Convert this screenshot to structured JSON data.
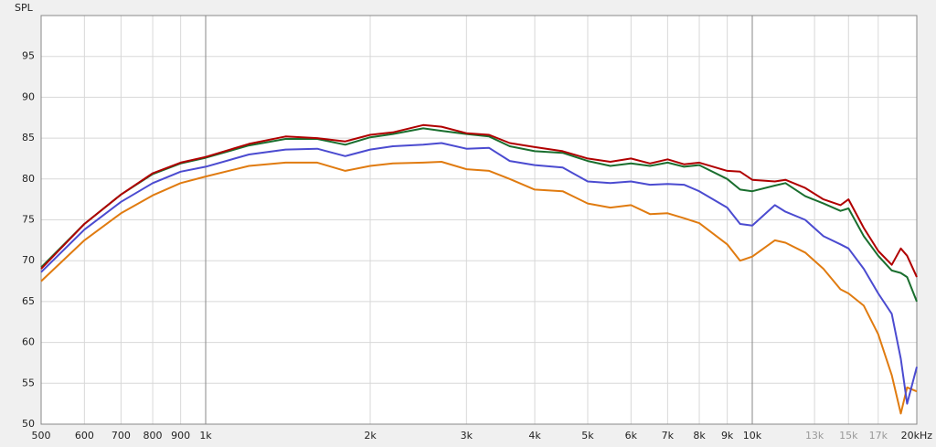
{
  "chart_data": {
    "type": "line",
    "y_label": "SPL",
    "xscale": "log",
    "grid": true,
    "x": [
      500,
      600,
      700,
      800,
      900,
      1000,
      1200,
      1400,
      1600,
      1800,
      2000,
      2200,
      2500,
      2700,
      3000,
      3300,
      3600,
      4000,
      4500,
      5000,
      5500,
      6000,
      6500,
      7000,
      7500,
      8000,
      9000,
      9500,
      10000,
      11000,
      11500,
      12500,
      13500,
      14500,
      15000,
      16000,
      17000,
      18000,
      18700,
      19200,
      20000
    ],
    "series": [
      {
        "color": "#b00000",
        "values": [
          69,
          74.5,
          78.1,
          80.7,
          82,
          82.7,
          84.3,
          85.2,
          85,
          84.6,
          85.4,
          85.7,
          86.6,
          86.4,
          85.6,
          85.4,
          84.4,
          83.9,
          83.4,
          82.5,
          82.1,
          82.5,
          81.9,
          82.4,
          81.8,
          82,
          81,
          80.9,
          79.9,
          79.7,
          79.9,
          78.9,
          77.5,
          76.8,
          77.5,
          74,
          71.2,
          69.5,
          71.5,
          70.6,
          68
        ]
      },
      {
        "color": "#1a6e2e",
        "values": [
          69.2,
          74.5,
          78.1,
          80.6,
          81.9,
          82.6,
          84.1,
          84.9,
          84.9,
          84.2,
          85.1,
          85.5,
          86.2,
          85.9,
          85.5,
          85.2,
          84,
          83.4,
          83.2,
          82.2,
          81.6,
          81.9,
          81.6,
          82,
          81.5,
          81.7,
          80,
          78.7,
          78.5,
          79.2,
          79.5,
          77.9,
          77,
          76.1,
          76.4,
          73,
          70.6,
          68.8,
          68.5,
          68,
          65
        ]
      },
      {
        "color": "#4b4bd0",
        "values": [
          68.6,
          73.8,
          77.2,
          79.5,
          80.9,
          81.5,
          83,
          83.6,
          83.7,
          82.8,
          83.6,
          84,
          84.2,
          84.4,
          83.7,
          83.8,
          82.2,
          81.7,
          81.4,
          79.7,
          79.5,
          79.7,
          79.3,
          79.4,
          79.3,
          78.5,
          76.5,
          74.5,
          74.3,
          76.8,
          76,
          75,
          73,
          72,
          71.5,
          69,
          66,
          63.5,
          58,
          52.5,
          57
        ]
      },
      {
        "color": "#e07b10",
        "values": [
          67.5,
          72.5,
          75.8,
          78,
          79.5,
          80.3,
          81.6,
          82,
          82,
          81,
          81.6,
          81.9,
          82,
          82.1,
          81.2,
          81,
          80,
          78.7,
          78.5,
          77,
          76.5,
          76.8,
          75.7,
          75.8,
          75.2,
          74.6,
          72,
          70,
          70.5,
          72.5,
          72.2,
          71,
          69,
          66.5,
          66,
          64.5,
          61,
          56,
          51.3,
          54.5,
          54
        ]
      }
    ],
    "xlim": [
      500,
      20000
    ],
    "xticks": [
      500,
      600,
      700,
      800,
      900,
      {
        "value": 1000,
        "label": "1k"
      },
      {
        "value": 2000,
        "label": "2k"
      },
      {
        "value": 3000,
        "label": "3k"
      },
      {
        "value": 4000,
        "label": "4k"
      },
      {
        "value": 5000,
        "label": "5k"
      },
      {
        "value": 6000,
        "label": "6k"
      },
      {
        "value": 7000,
        "label": "7k"
      },
      {
        "value": 8000,
        "label": "8k"
      },
      {
        "value": 9000,
        "label": "9k"
      },
      {
        "value": 10000,
        "label": "10k"
      },
      {
        "value": 13000,
        "label": "13k"
      },
      {
        "value": 15000,
        "label": "15k"
      },
      {
        "value": 17000,
        "label": "17k"
      },
      {
        "value": 20000,
        "label": "20kHz"
      }
    ],
    "ylim": [
      50,
      100
    ],
    "yticks": [
      50,
      55,
      60,
      65,
      70,
      75,
      80,
      85,
      90,
      95
    ]
  }
}
